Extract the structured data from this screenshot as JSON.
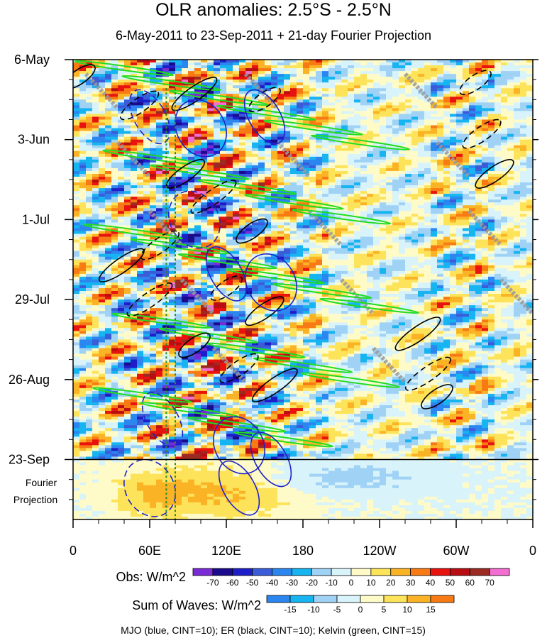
{
  "title": "OLR anomalies: 2.5°S - 2.5°N",
  "subtitle": "6-May-2011 to 23-Sep-2011 + 21-day Fourier Projection",
  "chart_data": {
    "type": "heatmap",
    "x_ticks": [
      "0",
      "60E",
      "120E",
      "180",
      "120W",
      "60W",
      "0"
    ],
    "x_tick_lon": [
      0,
      60,
      120,
      180,
      240,
      300,
      360
    ],
    "y_ticks": [
      "6-May",
      "3-Jun",
      "1-Jul",
      "29-Jul",
      "26-Aug",
      "23-Sep"
    ],
    "y_tick_day": [
      0,
      28,
      56,
      84,
      112,
      140
    ],
    "projection_label_1": "Fourier",
    "projection_label_2": "Projection",
    "projection_days": 21,
    "obs_day_range": [
      0,
      140
    ],
    "lon_range": [
      0,
      360
    ],
    "obs_colorbar": {
      "label": "Obs: W/m^2",
      "levels": [
        -70,
        -60,
        -50,
        -40,
        -30,
        -20,
        -10,
        0,
        10,
        20,
        30,
        40,
        50,
        60,
        70
      ],
      "colors": [
        "#7b2bd6",
        "#1a0a8c",
        "#1e1ec8",
        "#3a5cd8",
        "#2b86f0",
        "#16b4f0",
        "#9fd2f5",
        "#d9f3fb",
        "#fefbc8",
        "#fde35a",
        "#fbb326",
        "#f87a14",
        "#e8120f",
        "#b80d12",
        "#9b2a22",
        "#f26ed0"
      ]
    },
    "waves_colorbar": {
      "label": "Sum of Waves: W/m^2",
      "levels": [
        -15,
        -10,
        -5,
        0,
        5,
        10,
        15
      ],
      "colors": [
        "#2b86f0",
        "#16b4f0",
        "#9fd2f5",
        "#d9f3fb",
        "#fefbc8",
        "#fde35a",
        "#fbb326",
        "#f87a14"
      ]
    },
    "legend_note": "MJO (blue, CINT=10); ER (black, CINT=10); Kelvin (green, CINT=15)",
    "contour_colors": {
      "mjo": "#1f22c8",
      "er": "#000000",
      "kelvin": "#22dd22",
      "reference": "#9a9a9a",
      "lines": "#2a8a2a"
    },
    "reference_lon": [
      73,
      80
    ]
  }
}
